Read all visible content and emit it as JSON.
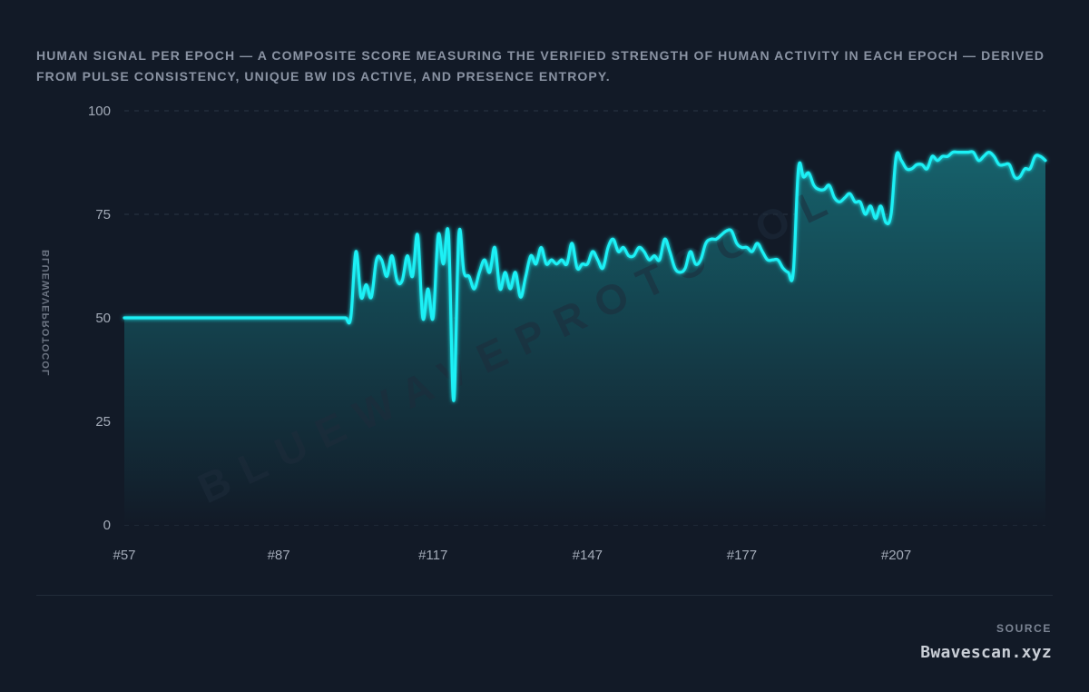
{
  "header": {
    "description": "HUMAN SIGNAL PER EPOCH — A COMPOSITE SCORE MEASURING THE VERIFIED STRENGTH OF HUMAN ACTIVITY IN EACH EPOCH — DERIVED FROM PULSE CONSISTENCY, UNIQUE BW IDS ACTIVE, AND PRESENCE ENTROPY."
  },
  "watermark": {
    "diagonal": "BLUEWAVEPROTOCOL",
    "vertical": "BLUEWAVEPROTOCOL"
  },
  "footer": {
    "source_label": "SOURCE",
    "source_value": "Bwavescan.xyz"
  },
  "colors": {
    "background": "#121a27",
    "line": "#1ff0f5",
    "area_top": "#16656f",
    "area_bottom": "#121a27",
    "grid": "#2b3645"
  },
  "chart_data": {
    "type": "area",
    "title": "",
    "xlabel": "",
    "ylabel": "",
    "ylim": [
      0,
      100
    ],
    "yticks": [
      "0",
      "25",
      "50",
      "75",
      "100"
    ],
    "xticks": [
      "#57",
      "#87",
      "#117",
      "#147",
      "#177",
      "#207"
    ],
    "xlim": [
      57,
      236
    ],
    "grid": true,
    "series": [
      {
        "x": [
          57,
          58,
          59,
          60,
          61,
          62,
          63,
          64,
          65,
          66,
          67,
          68,
          69,
          70,
          71,
          72,
          73,
          74,
          75,
          76,
          77,
          78,
          79,
          80,
          81,
          82,
          83,
          84,
          85,
          86,
          87,
          88,
          89,
          90,
          91,
          92,
          93,
          94,
          95,
          96,
          97,
          98,
          99,
          100,
          101,
          102,
          103,
          104,
          105,
          106,
          107,
          108,
          109,
          110,
          111,
          112,
          113,
          114,
          115,
          116,
          117,
          118,
          119,
          120,
          121,
          122,
          123,
          124,
          125,
          126,
          127,
          128,
          129,
          130,
          131,
          132,
          133,
          134,
          135,
          136,
          137,
          138,
          139,
          140,
          141,
          142,
          143,
          144,
          145,
          146,
          147,
          148,
          149,
          150,
          151,
          152,
          153,
          154,
          155,
          156,
          157,
          158,
          159,
          160,
          161,
          162,
          163,
          164,
          165,
          166,
          167,
          168,
          169,
          170,
          171,
          172,
          173,
          174,
          175,
          176,
          177,
          178,
          179,
          180,
          181,
          182,
          183,
          184,
          185,
          186,
          187,
          188,
          189,
          190,
          191,
          192,
          193,
          194,
          195,
          196,
          197,
          198,
          199,
          200,
          201,
          202,
          203,
          204,
          205,
          206,
          207,
          208,
          209,
          210,
          211,
          212,
          213,
          214,
          215,
          216,
          217,
          218,
          219,
          220,
          221,
          222,
          223,
          224,
          225,
          226,
          227,
          228,
          229,
          230,
          231,
          232,
          233,
          234,
          235,
          236
        ],
        "y": [
          50,
          50,
          50,
          50,
          50,
          50,
          50,
          50,
          50,
          50,
          50,
          50,
          50,
          50,
          50,
          50,
          50,
          50,
          50,
          50,
          50,
          50,
          50,
          50,
          50,
          50,
          50,
          50,
          50,
          50,
          50,
          50,
          50,
          50,
          50,
          50,
          50,
          50,
          50,
          50,
          50,
          50,
          50,
          50,
          50,
          66,
          55,
          58,
          55,
          64,
          64,
          60,
          65,
          59,
          59,
          65,
          60,
          70,
          50,
          57,
          50,
          70,
          63,
          70,
          30,
          70,
          61,
          60,
          57,
          61,
          64,
          61,
          67,
          57,
          61,
          57,
          61,
          55,
          60,
          65,
          63,
          67,
          63,
          64,
          63,
          64,
          63,
          68,
          62,
          63,
          63,
          66,
          64,
          62,
          67,
          69,
          66,
          67,
          65,
          65,
          67,
          66,
          64,
          65,
          64,
          69,
          66,
          62,
          61,
          62,
          66,
          63,
          64,
          68,
          69,
          69,
          70,
          71,
          71,
          68,
          67,
          67,
          66,
          68,
          66,
          64,
          64,
          64,
          62,
          61,
          61,
          86,
          84,
          85,
          82,
          81,
          81,
          82,
          79,
          78,
          79,
          80,
          78,
          78,
          75,
          77,
          74,
          77,
          73,
          75,
          89,
          88,
          86,
          86,
          87,
          87,
          86,
          89,
          88,
          89,
          89,
          90,
          90,
          90,
          90,
          90,
          88,
          89,
          90,
          89,
          87,
          87,
          87,
          84,
          84,
          86,
          86,
          89,
          89,
          88
        ]
      }
    ]
  }
}
